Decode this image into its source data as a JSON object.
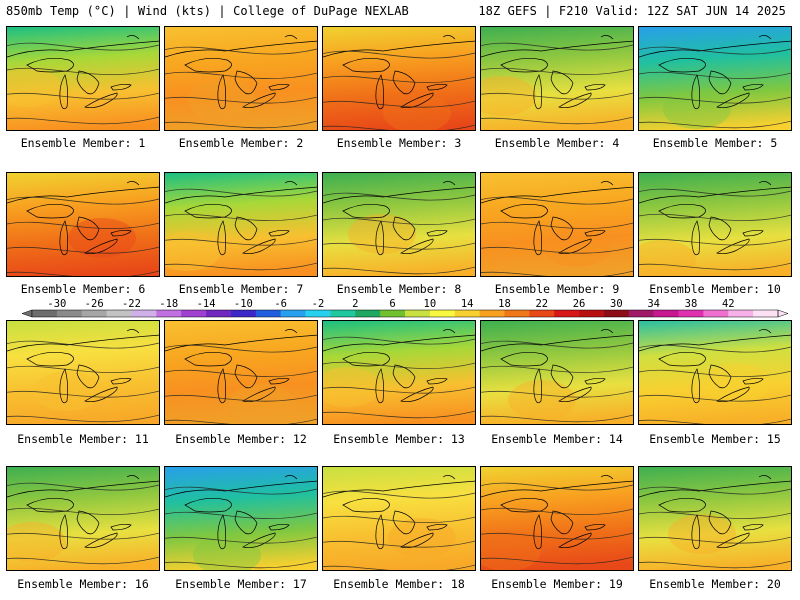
{
  "header": {
    "left": "850mb Temp (°C) | Wind (kts) | College of DuPage NEXLAB",
    "right": "18Z GEFS | F210 Valid: 12Z SAT JUN 14 2025"
  },
  "panels": [
    {
      "caption": "Ensemble Member: 1",
      "scheme": "warm-north-cool"
    },
    {
      "caption": "Ensemble Member: 2",
      "scheme": "warm"
    },
    {
      "caption": "Ensemble Member: 3",
      "scheme": "hot-west"
    },
    {
      "caption": "Ensemble Member: 4",
      "scheme": "cool-north"
    },
    {
      "caption": "Ensemble Member: 5",
      "scheme": "cold-north"
    },
    {
      "caption": "Ensemble Member: 6",
      "scheme": "hot-west"
    },
    {
      "caption": "Ensemble Member: 7",
      "scheme": "warm-north-cool"
    },
    {
      "caption": "Ensemble Member: 8",
      "scheme": "cool-north"
    },
    {
      "caption": "Ensemble Member: 9",
      "scheme": "warm"
    },
    {
      "caption": "Ensemble Member: 10",
      "scheme": "cool-north"
    },
    {
      "caption": "Ensemble Member: 11",
      "scheme": "mild"
    },
    {
      "caption": "Ensemble Member: 12",
      "scheme": "warm"
    },
    {
      "caption": "Ensemble Member: 13",
      "scheme": "warm-north-cool"
    },
    {
      "caption": "Ensemble Member: 14",
      "scheme": "cool-north"
    },
    {
      "caption": "Ensemble Member: 15",
      "scheme": "mild-ne-cool"
    },
    {
      "caption": "Ensemble Member: 16",
      "scheme": "cool-north"
    },
    {
      "caption": "Ensemble Member: 17",
      "scheme": "cold-north"
    },
    {
      "caption": "Ensemble Member: 18",
      "scheme": "mild"
    },
    {
      "caption": "Ensemble Member: 19",
      "scheme": "hot-west"
    },
    {
      "caption": "Ensemble Member: 20",
      "scheme": "cool-north"
    }
  ],
  "colorbar": {
    "labels": [
      "-30",
      "-26",
      "-22",
      "-18",
      "-14",
      "-10",
      "-6",
      "-2",
      "2",
      "6",
      "10",
      "14",
      "18",
      "22",
      "26",
      "30",
      "34",
      "38",
      "42"
    ],
    "colors": [
      "#6e6e6e",
      "#8a8a8a",
      "#a6a6a6",
      "#c2c2c2",
      "#d0b0e8",
      "#c070e0",
      "#a040d0",
      "#7028c0",
      "#3c28c8",
      "#2060e0",
      "#28a0f0",
      "#28d0f0",
      "#20c8a0",
      "#20a860",
      "#70c030",
      "#c8e040",
      "#f8f840",
      "#f8d030",
      "#f8a020",
      "#f07818",
      "#e84818",
      "#d81818",
      "#b81010",
      "#8c0c18",
      "#a01868",
      "#c81890",
      "#e030b0",
      "#f070d0",
      "#f8b0e8",
      "#fce0f4"
    ]
  }
}
